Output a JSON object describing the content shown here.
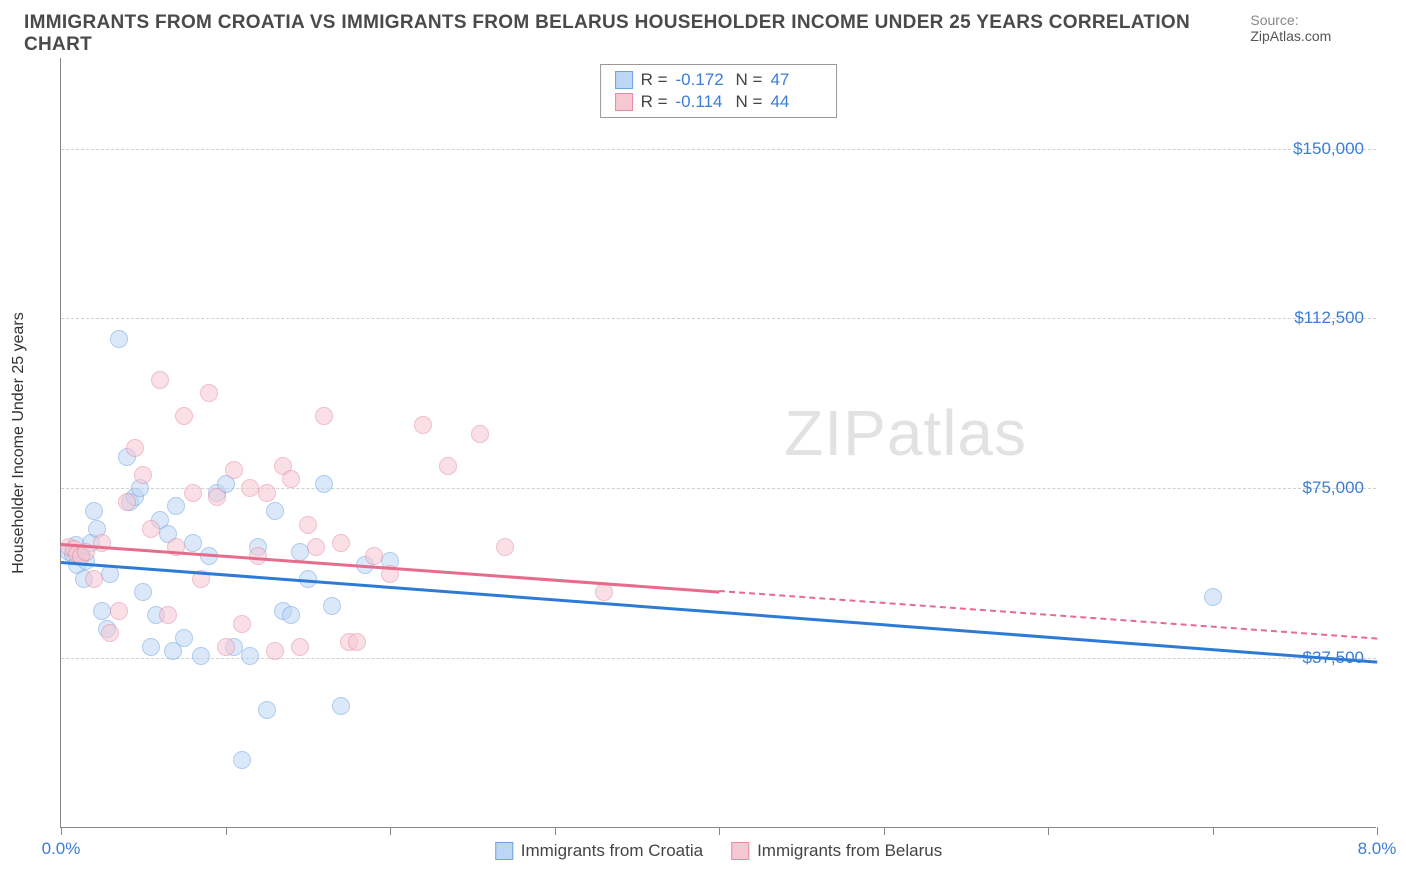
{
  "title": "IMMIGRANTS FROM CROATIA VS IMMIGRANTS FROM BELARUS HOUSEHOLDER INCOME UNDER 25 YEARS CORRELATION CHART",
  "source_label": "Source:",
  "source_value": "ZipAtlas.com",
  "watermark_a": "ZIP",
  "watermark_b": "atlas",
  "y_axis_title": "Householder Income Under 25 years",
  "chart": {
    "type": "scatter",
    "xlim": [
      0,
      8
    ],
    "ylim": [
      0,
      170000
    ],
    "x_ticks": [
      0,
      1,
      2,
      3,
      4,
      5,
      6,
      7,
      8
    ],
    "x_tick_labels": {
      "0": "0.0%",
      "8": "8.0%"
    },
    "y_ticks": [
      37500,
      75000,
      112500,
      150000
    ],
    "y_tick_labels": [
      "$37,500",
      "$75,000",
      "$112,500",
      "$150,000"
    ],
    "background_color": "#ffffff",
    "grid_color": "#d0d0d0",
    "axis_color": "#888888",
    "tick_label_color": "#3b7dd8",
    "marker_radius": 9,
    "marker_opacity": 0.55,
    "series": [
      {
        "name": "Immigrants from Croatia",
        "fill": "#bcd6f5",
        "stroke": "#6fa3e0",
        "line_color": "#2e7bd6",
        "R": "-0.172",
        "N": "47",
        "trend": {
          "x1": 0.0,
          "y1": 59000,
          "x2": 8.0,
          "y2": 37000,
          "solid_until_x": 8.0
        },
        "points": [
          [
            0.05,
            61000
          ],
          [
            0.07,
            60500
          ],
          [
            0.09,
            62500
          ],
          [
            0.1,
            58000
          ],
          [
            0.12,
            60000
          ],
          [
            0.14,
            55000
          ],
          [
            0.15,
            59000
          ],
          [
            0.18,
            63000
          ],
          [
            0.2,
            70000
          ],
          [
            0.22,
            66000
          ],
          [
            0.25,
            48000
          ],
          [
            0.28,
            44000
          ],
          [
            0.3,
            56000
          ],
          [
            0.35,
            108000
          ],
          [
            0.4,
            82000
          ],
          [
            0.42,
            72000
          ],
          [
            0.45,
            73000
          ],
          [
            0.48,
            75000
          ],
          [
            0.5,
            52000
          ],
          [
            0.55,
            40000
          ],
          [
            0.58,
            47000
          ],
          [
            0.6,
            68000
          ],
          [
            0.65,
            65000
          ],
          [
            0.68,
            39000
          ],
          [
            0.7,
            71000
          ],
          [
            0.75,
            42000
          ],
          [
            0.8,
            63000
          ],
          [
            0.85,
            38000
          ],
          [
            0.9,
            60000
          ],
          [
            0.95,
            74000
          ],
          [
            1.0,
            76000
          ],
          [
            1.05,
            40000
          ],
          [
            1.1,
            15000
          ],
          [
            1.15,
            38000
          ],
          [
            1.2,
            62000
          ],
          [
            1.25,
            26000
          ],
          [
            1.3,
            70000
          ],
          [
            1.35,
            48000
          ],
          [
            1.4,
            47000
          ],
          [
            1.45,
            61000
          ],
          [
            1.5,
            55000
          ],
          [
            1.6,
            76000
          ],
          [
            1.65,
            49000
          ],
          [
            1.7,
            27000
          ],
          [
            1.85,
            58000
          ],
          [
            2.0,
            59000
          ],
          [
            7.0,
            51000
          ]
        ]
      },
      {
        "name": "Immigrants from Belarus",
        "fill": "#f6c8d3",
        "stroke": "#e48aa4",
        "line_color": "#e76b8d",
        "R": "-0.114",
        "N": "44",
        "trend": {
          "x1": 0.0,
          "y1": 63000,
          "x2": 8.0,
          "y2": 42000,
          "solid_until_x": 4.0
        },
        "points": [
          [
            0.05,
            62000
          ],
          [
            0.08,
            61500
          ],
          [
            0.1,
            60500
          ],
          [
            0.12,
            60000
          ],
          [
            0.15,
            61000
          ],
          [
            0.2,
            55000
          ],
          [
            0.25,
            63000
          ],
          [
            0.3,
            43000
          ],
          [
            0.35,
            48000
          ],
          [
            0.4,
            72000
          ],
          [
            0.45,
            84000
          ],
          [
            0.5,
            78000
          ],
          [
            0.55,
            66000
          ],
          [
            0.6,
            99000
          ],
          [
            0.65,
            47000
          ],
          [
            0.7,
            62000
          ],
          [
            0.75,
            91000
          ],
          [
            0.8,
            74000
          ],
          [
            0.85,
            55000
          ],
          [
            0.9,
            96000
          ],
          [
            0.95,
            73000
          ],
          [
            1.0,
            40000
          ],
          [
            1.05,
            79000
          ],
          [
            1.1,
            45000
          ],
          [
            1.15,
            75000
          ],
          [
            1.2,
            60000
          ],
          [
            1.25,
            74000
          ],
          [
            1.3,
            39000
          ],
          [
            1.35,
            80000
          ],
          [
            1.4,
            77000
          ],
          [
            1.45,
            40000
          ],
          [
            1.5,
            67000
          ],
          [
            1.55,
            62000
          ],
          [
            1.6,
            91000
          ],
          [
            1.7,
            63000
          ],
          [
            1.75,
            41000
          ],
          [
            1.8,
            41000
          ],
          [
            1.9,
            60000
          ],
          [
            2.0,
            56000
          ],
          [
            2.2,
            89000
          ],
          [
            2.35,
            80000
          ],
          [
            2.55,
            87000
          ],
          [
            2.7,
            62000
          ],
          [
            3.3,
            52000
          ]
        ]
      }
    ]
  }
}
